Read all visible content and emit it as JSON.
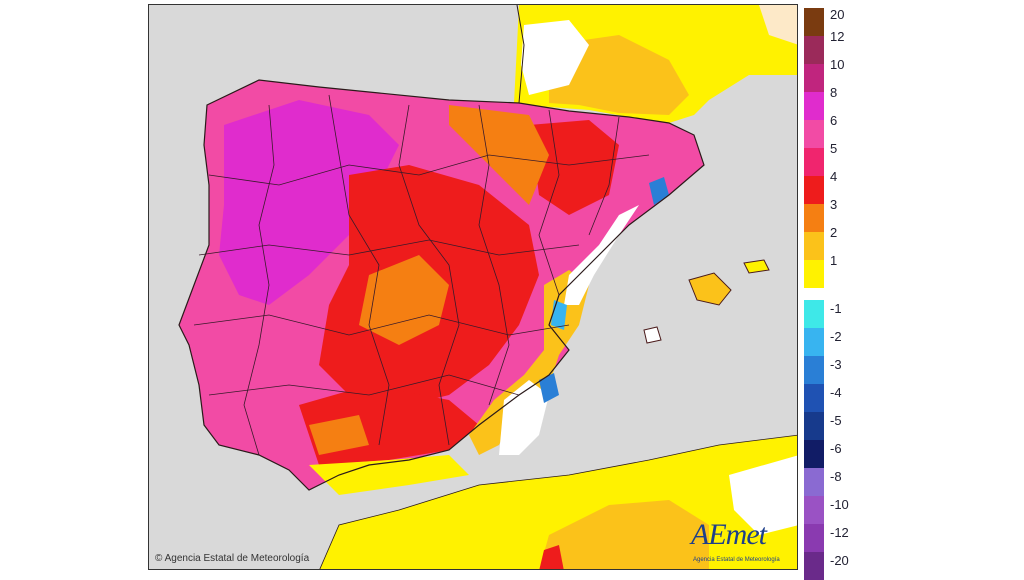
{
  "map": {
    "copyright": "© Agencia Estatal de Meteorología",
    "logo_text": "AEmet",
    "logo_subtitle": "Agencia Estatal de Meteorología"
  },
  "legend": {
    "items": [
      {
        "label": "20",
        "color": "#7a3b10"
      },
      {
        "label": "12",
        "color": "#9b2a5a"
      },
      {
        "label": "10",
        "color": "#c0257e"
      },
      {
        "label": "8",
        "color": "#e02ccd"
      },
      {
        "label": "6",
        "color": "#f24ba5"
      },
      {
        "label": "5",
        "color": "#f0256e"
      },
      {
        "label": "4",
        "color": "#ee1c1c"
      },
      {
        "label": "3",
        "color": "#f57f12"
      },
      {
        "label": "2",
        "color": "#fbc21a"
      },
      {
        "label": "1",
        "color": "#fff200"
      },
      {
        "label": "-1",
        "color": "#3ee8e8"
      },
      {
        "label": "-2",
        "color": "#38b4f0"
      },
      {
        "label": "-3",
        "color": "#2a7fd6"
      },
      {
        "label": "-4",
        "color": "#1f52b3"
      },
      {
        "label": "-5",
        "color": "#173a8c"
      },
      {
        "label": "-6",
        "color": "#111c66"
      },
      {
        "label": "-8",
        "color": "#8a6ad2"
      },
      {
        "label": "-10",
        "color": "#9a52c4"
      },
      {
        "label": "-12",
        "color": "#8a3ab0"
      },
      {
        "label": "-20",
        "color": "#6a2a8a"
      }
    ]
  },
  "colors": {
    "sea": "#d9d9d9",
    "neutral_land": "#ffffff",
    "border_line": "#2b1a1a"
  }
}
